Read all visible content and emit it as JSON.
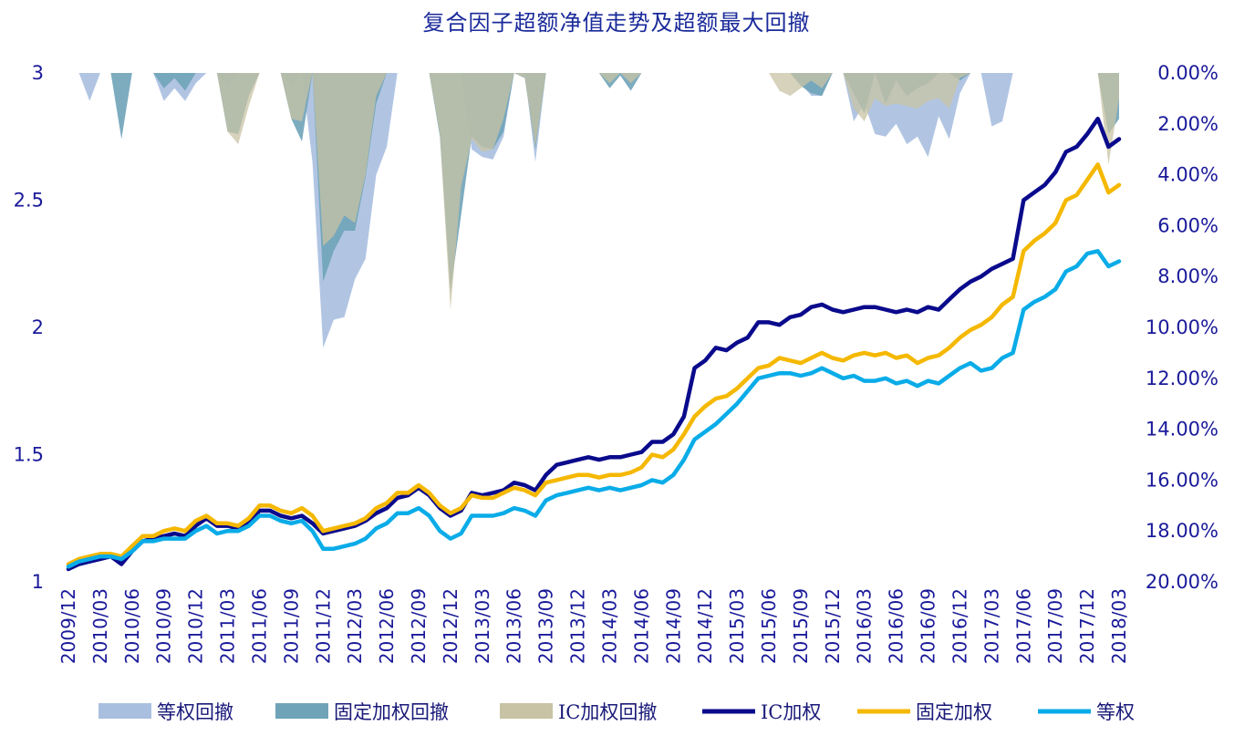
{
  "chart_data": {
    "type": "line",
    "title": "复合因子超额净值走势及超额最大回撤",
    "x": [
      "2009/12",
      "2010/01",
      "2010/02",
      "2010/03",
      "2010/04",
      "2010/05",
      "2010/06",
      "2010/07",
      "2010/08",
      "2010/09",
      "2010/10",
      "2010/11",
      "2010/12",
      "2011/01",
      "2011/02",
      "2011/03",
      "2011/04",
      "2011/05",
      "2011/06",
      "2011/07",
      "2011/08",
      "2011/09",
      "2011/10",
      "2011/11",
      "2011/12",
      "2012/01",
      "2012/02",
      "2012/03",
      "2012/04",
      "2012/05",
      "2012/06",
      "2012/07",
      "2012/08",
      "2012/09",
      "2012/10",
      "2012/11",
      "2012/12",
      "2013/01",
      "2013/02",
      "2013/03",
      "2013/04",
      "2013/05",
      "2013/06",
      "2013/07",
      "2013/08",
      "2013/09",
      "2013/10",
      "2013/11",
      "2013/12",
      "2014/01",
      "2014/02",
      "2014/03",
      "2014/04",
      "2014/05",
      "2014/06",
      "2014/07",
      "2014/08",
      "2014/09",
      "2014/10",
      "2014/11",
      "2014/12",
      "2015/01",
      "2015/02",
      "2015/03",
      "2015/04",
      "2015/05",
      "2015/06",
      "2015/07",
      "2015/08",
      "2015/09",
      "2015/10",
      "2015/11",
      "2015/12",
      "2016/01",
      "2016/02",
      "2016/03",
      "2016/04",
      "2016/05",
      "2016/06",
      "2016/07",
      "2016/08",
      "2016/09",
      "2016/10",
      "2016/11",
      "2016/12",
      "2017/01",
      "2017/02",
      "2017/03",
      "2017/04",
      "2017/05",
      "2017/06",
      "2017/07",
      "2017/08",
      "2017/09",
      "2017/10",
      "2017/11",
      "2017/12",
      "2018/01",
      "2018/02",
      "2018/03"
    ],
    "x_tick_labels": [
      "2009/12",
      "2010/03",
      "2010/06",
      "2010/09",
      "2010/12",
      "2011/03",
      "2011/06",
      "2011/09",
      "2011/12",
      "2012/03",
      "2012/06",
      "2012/09",
      "2012/12",
      "2013/03",
      "2013/06",
      "2013/09",
      "2013/12",
      "2014/03",
      "2014/06",
      "2014/09",
      "2014/12",
      "2015/03",
      "2015/06",
      "2015/09",
      "2015/12",
      "2016/03",
      "2016/06",
      "2016/09",
      "2016/12",
      "2017/03",
      "2017/06",
      "2017/09",
      "2017/12",
      "2018/03"
    ],
    "ylim": [
      1,
      3
    ],
    "yticks": [
      1,
      1.5,
      2,
      2.5,
      3
    ],
    "ytick_labels": [
      "1",
      "1.5",
      "2",
      "2.5",
      "3"
    ],
    "y2lim": [
      0,
      0.2
    ],
    "y2ticks": [
      0,
      0.02,
      0.04,
      0.06,
      0.08,
      0.1,
      0.12,
      0.14,
      0.16,
      0.18,
      0.2
    ],
    "y2tick_labels": [
      "0.00%",
      "2.00%",
      "4.00%",
      "6.00%",
      "8.00%",
      "10.00%",
      "12.00%",
      "14.00%",
      "16.00%",
      "18.00%",
      "20.00%"
    ],
    "y2_inverted": true,
    "legend_position": "bottom",
    "lines": [
      {
        "name": "IC加权",
        "color": "#0a0a8c",
        "values": [
          1.05,
          1.07,
          1.08,
          1.09,
          1.1,
          1.07,
          1.12,
          1.16,
          1.17,
          1.18,
          1.19,
          1.18,
          1.22,
          1.25,
          1.22,
          1.22,
          1.21,
          1.23,
          1.28,
          1.28,
          1.26,
          1.25,
          1.26,
          1.23,
          1.19,
          1.2,
          1.21,
          1.22,
          1.24,
          1.27,
          1.29,
          1.33,
          1.34,
          1.37,
          1.34,
          1.29,
          1.26,
          1.28,
          1.35,
          1.34,
          1.35,
          1.36,
          1.39,
          1.38,
          1.36,
          1.42,
          1.46,
          1.47,
          1.48,
          1.49,
          1.48,
          1.49,
          1.49,
          1.5,
          1.51,
          1.55,
          1.55,
          1.58,
          1.65,
          1.84,
          1.87,
          1.92,
          1.91,
          1.94,
          1.96,
          2.02,
          2.02,
          2.01,
          2.04,
          2.05,
          2.08,
          2.09,
          2.07,
          2.06,
          2.07,
          2.08,
          2.08,
          2.07,
          2.06,
          2.07,
          2.06,
          2.08,
          2.07,
          2.11,
          2.15,
          2.18,
          2.2,
          2.23,
          2.25,
          2.27,
          2.5,
          2.53,
          2.56,
          2.61,
          2.69,
          2.71,
          2.76,
          2.82,
          2.71,
          2.74
        ]
      },
      {
        "name": "固定加权",
        "color": "#f5b800",
        "values": [
          1.07,
          1.09,
          1.1,
          1.11,
          1.11,
          1.1,
          1.14,
          1.18,
          1.18,
          1.2,
          1.21,
          1.2,
          1.24,
          1.26,
          1.23,
          1.23,
          1.22,
          1.25,
          1.3,
          1.3,
          1.28,
          1.27,
          1.29,
          1.26,
          1.2,
          1.21,
          1.22,
          1.23,
          1.25,
          1.29,
          1.31,
          1.35,
          1.35,
          1.38,
          1.35,
          1.3,
          1.27,
          1.29,
          1.34,
          1.33,
          1.33,
          1.35,
          1.37,
          1.36,
          1.34,
          1.39,
          1.4,
          1.41,
          1.42,
          1.42,
          1.41,
          1.42,
          1.42,
          1.43,
          1.45,
          1.5,
          1.49,
          1.52,
          1.58,
          1.65,
          1.69,
          1.72,
          1.73,
          1.76,
          1.8,
          1.84,
          1.85,
          1.88,
          1.87,
          1.86,
          1.88,
          1.9,
          1.88,
          1.87,
          1.89,
          1.9,
          1.89,
          1.9,
          1.88,
          1.89,
          1.86,
          1.88,
          1.89,
          1.92,
          1.96,
          1.99,
          2.01,
          2.04,
          2.09,
          2.12,
          2.3,
          2.34,
          2.37,
          2.41,
          2.5,
          2.52,
          2.58,
          2.64,
          2.53,
          2.56
        ]
      },
      {
        "name": "等权",
        "color": "#0aace8",
        "values": [
          1.06,
          1.08,
          1.09,
          1.1,
          1.1,
          1.09,
          1.12,
          1.16,
          1.16,
          1.17,
          1.17,
          1.17,
          1.2,
          1.22,
          1.19,
          1.2,
          1.2,
          1.22,
          1.26,
          1.26,
          1.24,
          1.23,
          1.24,
          1.2,
          1.13,
          1.13,
          1.14,
          1.15,
          1.17,
          1.21,
          1.23,
          1.27,
          1.27,
          1.29,
          1.26,
          1.2,
          1.17,
          1.19,
          1.26,
          1.26,
          1.26,
          1.27,
          1.29,
          1.28,
          1.26,
          1.32,
          1.34,
          1.35,
          1.36,
          1.37,
          1.36,
          1.37,
          1.36,
          1.37,
          1.38,
          1.4,
          1.39,
          1.42,
          1.48,
          1.56,
          1.59,
          1.62,
          1.66,
          1.7,
          1.75,
          1.8,
          1.81,
          1.82,
          1.82,
          1.81,
          1.82,
          1.84,
          1.82,
          1.8,
          1.81,
          1.79,
          1.79,
          1.8,
          1.78,
          1.79,
          1.77,
          1.79,
          1.78,
          1.81,
          1.84,
          1.86,
          1.83,
          1.84,
          1.88,
          1.9,
          2.07,
          2.1,
          2.12,
          2.15,
          2.22,
          2.24,
          2.29,
          2.3,
          2.24,
          2.26
        ]
      }
    ],
    "areas": [
      {
        "name": "等权回撤",
        "color": "#a9bfe0",
        "values": [
          0,
          0,
          0.011,
          0,
          0,
          0,
          0,
          0,
          0,
          0.011,
          0.006,
          0.011,
          0.004,
          0,
          0,
          0.006,
          0,
          0,
          0,
          0,
          0,
          0.005,
          0,
          0.035,
          0.108,
          0.097,
          0.096,
          0.081,
          0.073,
          0.04,
          0.029,
          0,
          0,
          0,
          0,
          0,
          0,
          0,
          0.03,
          0.033,
          0.034,
          0.025,
          0,
          0,
          0.035,
          0,
          0,
          0,
          0,
          0,
          0,
          0,
          0,
          0,
          0,
          0,
          0,
          0,
          0,
          0,
          0,
          0,
          0,
          0,
          0,
          0,
          0,
          0,
          0,
          0.004,
          0.009,
          0.009,
          0,
          0,
          0.019,
          0.012,
          0.024,
          0.025,
          0.02,
          0.028,
          0.025,
          0.033,
          0.017,
          0.026,
          0.008,
          0,
          0,
          0.021,
          0.019,
          0,
          0,
          0,
          0,
          0,
          0,
          0,
          0,
          0,
          0,
          0
        ]
      },
      {
        "name": "固定加权回撤",
        "color": "#6fa3b8",
        "values": [
          0,
          0,
          0,
          0,
          0,
          0.026,
          0,
          0,
          0,
          0.006,
          0.002,
          0.007,
          0,
          0,
          0,
          0.023,
          0.024,
          0.009,
          0,
          0,
          0,
          0.018,
          0.027,
          0,
          0.082,
          0.07,
          0.062,
          0.062,
          0.041,
          0.012,
          0,
          0,
          0,
          0,
          0,
          0.025,
          0.086,
          0.056,
          0.025,
          0.029,
          0.03,
          0.023,
          0,
          0.002,
          0.03,
          0,
          0,
          0,
          0,
          0,
          0,
          0.006,
          0.001,
          0.007,
          0,
          0,
          0,
          0,
          0,
          0,
          0,
          0,
          0,
          0,
          0,
          0,
          0,
          0,
          0,
          0.005,
          0.008,
          0.009,
          0,
          0,
          0.008,
          0.016,
          0,
          0.012,
          0.003,
          0.009,
          0.006,
          0.004,
          0,
          0,
          0.003,
          0,
          0,
          0,
          0,
          0,
          0,
          0,
          0,
          0,
          0,
          0,
          0,
          0,
          0.024,
          0.018
        ]
      },
      {
        "name": "IC加权回撤",
        "color": "#c8c3a4",
        "values": [
          0,
          0,
          0,
          0,
          0,
          0,
          0,
          0,
          0,
          0,
          0,
          0,
          0,
          0,
          0,
          0.023,
          0.028,
          0.013,
          0,
          0,
          0,
          0.018,
          0.019,
          0,
          0.068,
          0.064,
          0.056,
          0.059,
          0.04,
          0.009,
          0,
          0,
          0,
          0,
          0,
          0.024,
          0.093,
          0.045,
          0.026,
          0.031,
          0.03,
          0.018,
          0,
          0.002,
          0.029,
          0,
          0,
          0,
          0,
          0,
          0,
          0.004,
          0,
          0.004,
          0,
          0,
          0,
          0,
          0,
          0,
          0,
          0,
          0,
          0,
          0,
          0,
          0,
          0.007,
          0.009,
          0.006,
          0.003,
          0.006,
          0,
          0,
          0.014,
          0.019,
          0.01,
          0.013,
          0.012,
          0.013,
          0.014,
          0.011,
          0.01,
          0.014,
          0.002,
          0,
          0,
          0,
          0,
          0,
          0,
          0,
          0,
          0,
          0,
          0,
          0,
          0,
          0.036,
          0.01
        ]
      }
    ]
  }
}
